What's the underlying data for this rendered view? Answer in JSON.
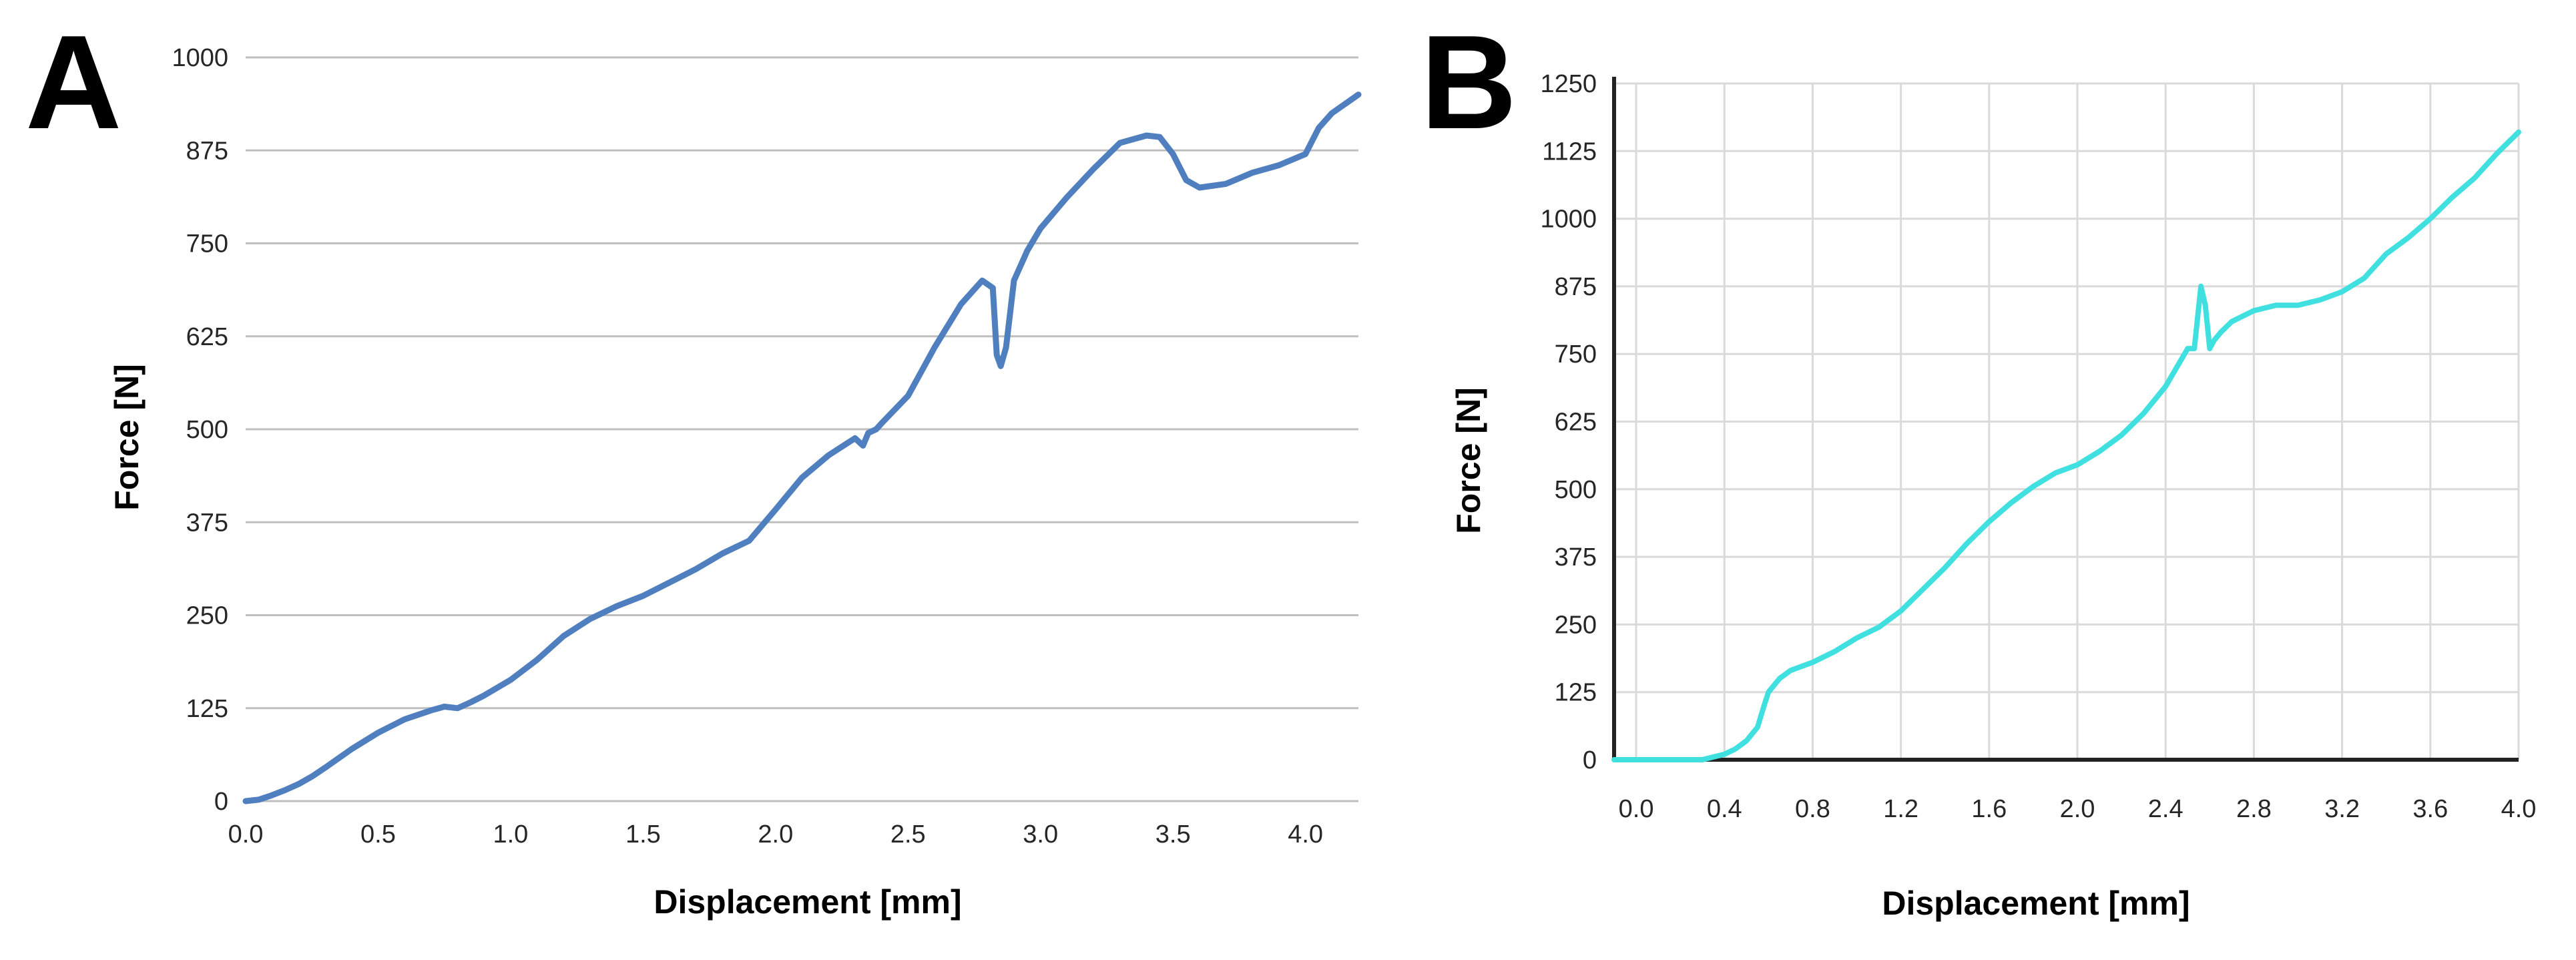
{
  "colors": {
    "series_a": "#4F7FBF",
    "series_b": "#40E0E0",
    "grid_a": "#BFBFBF",
    "grid_b": "#DADADA",
    "axis_b": "#222222",
    "text": "#262626"
  },
  "chart_data": [
    {
      "type": "line",
      "panel_label": "A",
      "title": "",
      "xlabel": "Displacement [mm]",
      "ylabel": "Force [N]",
      "xlim": [
        0,
        4.2
      ],
      "ylim": [
        0,
        1000
      ],
      "x_ticks": [
        "0.0",
        "0.5",
        "1.0",
        "1.5",
        "2.0",
        "2.5",
        "3.0",
        "3.5",
        "4.0"
      ],
      "y_ticks": [
        "0",
        "125",
        "250",
        "375",
        "500",
        "625",
        "750",
        "875",
        "1000"
      ],
      "grid": "horizontal",
      "series": [
        {
          "name": "A",
          "x": [
            0.0,
            0.05,
            0.1,
            0.15,
            0.2,
            0.25,
            0.3,
            0.4,
            0.5,
            0.6,
            0.7,
            0.75,
            0.8,
            0.85,
            0.9,
            1.0,
            1.1,
            1.2,
            1.3,
            1.4,
            1.5,
            1.6,
            1.7,
            1.8,
            1.9,
            2.0,
            2.1,
            2.2,
            2.3,
            2.33,
            2.35,
            2.38,
            2.4,
            2.5,
            2.6,
            2.7,
            2.78,
            2.82,
            2.835,
            2.85,
            2.87,
            2.9,
            2.95,
            3.0,
            3.1,
            3.2,
            3.3,
            3.4,
            3.45,
            3.5,
            3.55,
            3.6,
            3.7,
            3.8,
            3.9,
            4.0,
            4.05,
            4.1,
            4.2
          ],
          "y": [
            0,
            2,
            8,
            15,
            23,
            33,
            45,
            70,
            92,
            110,
            122,
            127,
            125,
            133,
            142,
            163,
            190,
            222,
            245,
            262,
            276,
            294,
            312,
            333,
            350,
            392,
            435,
            465,
            488,
            478,
            495,
            500,
            508,
            545,
            610,
            668,
            700,
            690,
            600,
            585,
            610,
            700,
            740,
            770,
            812,
            850,
            885,
            895,
            893,
            870,
            835,
            825,
            830,
            845,
            855,
            870,
            905,
            925,
            950
          ]
        }
      ]
    },
    {
      "type": "line",
      "panel_label": "B",
      "title": "",
      "xlabel": "Displacement [mm]",
      "ylabel": "Force [N]",
      "xlim": [
        -0.1,
        4.0
      ],
      "ylim": [
        0,
        1250
      ],
      "x_ticks": [
        "0.0",
        "0.4",
        "0.8",
        "1.2",
        "1.6",
        "2.0",
        "2.4",
        "2.8",
        "3.2",
        "3.6",
        "4.0"
      ],
      "y_ticks": [
        "0",
        "125",
        "250",
        "375",
        "500",
        "625",
        "750",
        "875",
        "1000",
        "1125",
        "1250"
      ],
      "grid": "both",
      "series": [
        {
          "name": "B",
          "x": [
            -0.1,
            0.3,
            0.35,
            0.4,
            0.45,
            0.5,
            0.55,
            0.58,
            0.6,
            0.65,
            0.7,
            0.8,
            0.9,
            1.0,
            1.1,
            1.2,
            1.3,
            1.4,
            1.5,
            1.6,
            1.7,
            1.8,
            1.9,
            2.0,
            2.1,
            2.2,
            2.3,
            2.4,
            2.5,
            2.53,
            2.56,
            2.58,
            2.6,
            2.62,
            2.65,
            2.7,
            2.8,
            2.9,
            3.0,
            3.1,
            3.2,
            3.3,
            3.4,
            3.5,
            3.6,
            3.7,
            3.8,
            3.9,
            4.0
          ],
          "y": [
            0,
            0,
            5,
            10,
            20,
            35,
            60,
            100,
            125,
            150,
            165,
            180,
            200,
            225,
            245,
            275,
            315,
            355,
            400,
            440,
            475,
            505,
            530,
            545,
            570,
            600,
            640,
            690,
            760,
            760,
            875,
            840,
            760,
            775,
            790,
            810,
            830,
            840,
            840,
            850,
            865,
            890,
            935,
            965,
            1000,
            1040,
            1075,
            1120,
            1160
          ]
        }
      ]
    }
  ]
}
